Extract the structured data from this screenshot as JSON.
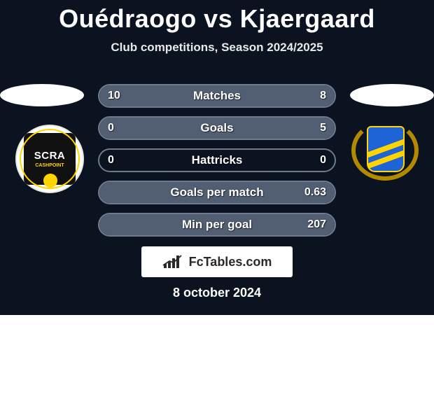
{
  "title": "Ouédraogo vs Kjaergaard",
  "subtitle": "Club competitions, Season 2024/2025",
  "brand": "FcTables.com",
  "date": "8 october 2024",
  "left_club": {
    "line1": "SCRA",
    "line2": "CASHPOINT"
  },
  "colors": {
    "stage_bg": "#0b1220",
    "row_border": "#6e7a8f",
    "left_fill": "#525e72",
    "right_fill": "#525e72",
    "text": "#ffffff",
    "brand_bg": "#ffffff",
    "brand_text": "#2a2a2a"
  },
  "rows": [
    {
      "label": "Matches",
      "left": "10",
      "right": "8",
      "left_pct": 56,
      "right_pct": 44
    },
    {
      "label": "Goals",
      "left": "0",
      "right": "5",
      "left_pct": 0,
      "right_pct": 100
    },
    {
      "label": "Hattricks",
      "left": "0",
      "right": "0",
      "left_pct": 0,
      "right_pct": 0
    },
    {
      "label": "Goals per match",
      "left": "",
      "right": "0.63",
      "left_pct": 0,
      "right_pct": 100
    },
    {
      "label": "Min per goal",
      "left": "",
      "right": "207",
      "left_pct": 0,
      "right_pct": 100
    }
  ]
}
